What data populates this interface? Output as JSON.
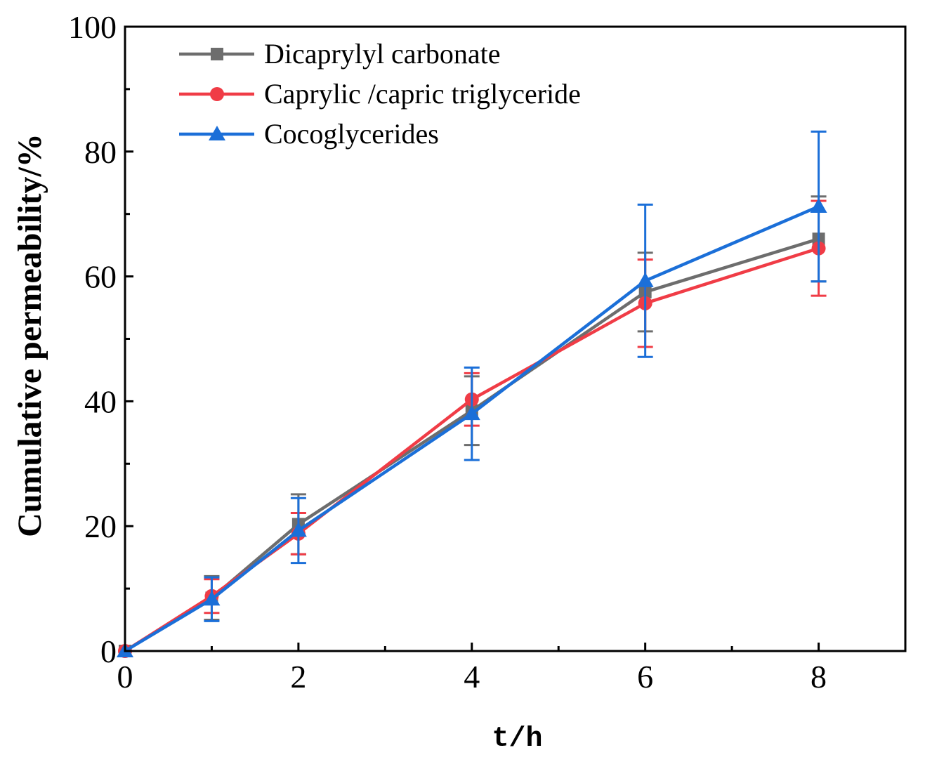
{
  "chart_data": {
    "type": "line",
    "title": "",
    "xlabel": "t/h",
    "ylabel": "Cumulative permeability/%",
    "xlim": [
      0,
      9
    ],
    "ylim": [
      0,
      100
    ],
    "x_ticks": [
      0,
      2,
      4,
      6,
      8
    ],
    "y_ticks": [
      0,
      20,
      40,
      60,
      80,
      100
    ],
    "x_minor_ticks": [
      1,
      3,
      5,
      7
    ],
    "y_minor_ticks": [
      10,
      30,
      50,
      70,
      90
    ],
    "x": [
      0,
      1,
      2,
      4,
      6,
      8
    ],
    "legend_position": "top-left",
    "series": [
      {
        "name": "Dicaprylyl carbonate",
        "color": "#6d6d6d",
        "marker": "square",
        "values": [
          0,
          8.5,
          20.3,
          38.5,
          57.5,
          66.0
        ],
        "errors": [
          0,
          3.5,
          4.8,
          5.5,
          6.3,
          6.8
        ]
      },
      {
        "name": "Caprylic /capric triglyceride",
        "color": "#f03c46",
        "marker": "circle",
        "values": [
          0,
          8.8,
          18.8,
          40.3,
          55.7,
          64.5
        ],
        "errors": [
          0,
          2.7,
          3.3,
          4.2,
          7.0,
          7.6
        ]
      },
      {
        "name": "Cocoglycerides",
        "color": "#1b6fd8",
        "marker": "triangle",
        "values": [
          0,
          8.3,
          19.3,
          38.0,
          59.3,
          71.2
        ],
        "errors": [
          0,
          3.5,
          5.2,
          7.4,
          12.2,
          12.0
        ]
      }
    ]
  }
}
